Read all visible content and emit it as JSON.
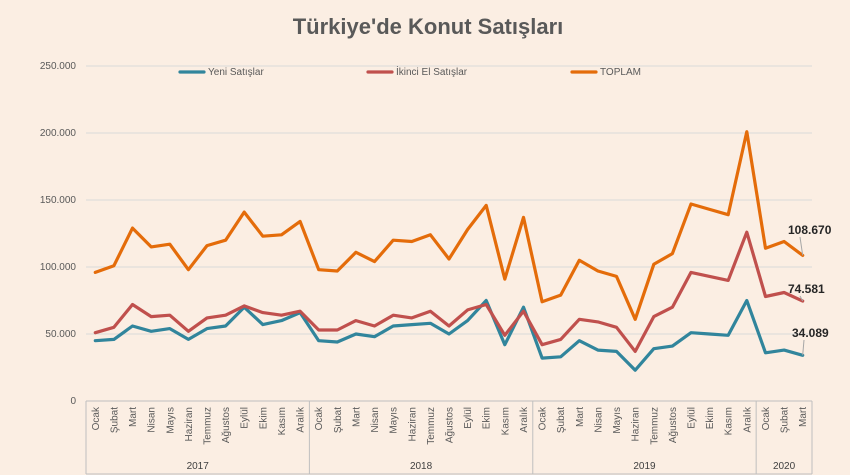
{
  "chart_data": {
    "type": "line",
    "title": "Türkiye'de Konut Satışları",
    "ylim": [
      0,
      250000
    ],
    "yticks": [
      "0",
      "50.000",
      "100.000",
      "150.000",
      "200.000",
      "250.000"
    ],
    "ytick_values": [
      0,
      50000,
      100000,
      150000,
      200000,
      250000
    ],
    "grid": "horizontal",
    "legend_position": "top",
    "categories": [
      "Ocak",
      "Şubat",
      "Mart",
      "Nisan",
      "Mayıs",
      "Haziran",
      "Temmuz",
      "Ağustos",
      "Eylül",
      "Ekim",
      "Kasım",
      "Aralık",
      "Ocak",
      "Şubat",
      "Mart",
      "Nisan",
      "Mayıs",
      "Haziran",
      "Temmuz",
      "Ağustos",
      "Eylül",
      "Ekim",
      "Kasım",
      "Aralık",
      "Ocak",
      "Şubat",
      "Mart",
      "Nisan",
      "Mayıs",
      "Haziran",
      "Temmuz",
      "Ağustos",
      "Eylül",
      "Ekim",
      "Kasım",
      "Aralık",
      "Ocak",
      "Şubat",
      "Mart"
    ],
    "year_groups": [
      {
        "label": "2017",
        "count": 12
      },
      {
        "label": "2018",
        "count": 12
      },
      {
        "label": "2019",
        "count": 12
      },
      {
        "label": "2020",
        "count": 3
      }
    ],
    "series": [
      {
        "name": "Yeni Satışlar",
        "color": "#31859c",
        "values": [
          45000,
          46000,
          56000,
          52000,
          54000,
          46000,
          54000,
          56000,
          70000,
          57000,
          60000,
          66000,
          45000,
          44000,
          50000,
          48000,
          56000,
          57000,
          58000,
          50000,
          60000,
          75000,
          42000,
          70000,
          32000,
          33000,
          45000,
          38000,
          37000,
          23000,
          39000,
          41000,
          51000,
          50000,
          49000,
          75000,
          36000,
          38000,
          34089
        ]
      },
      {
        "name": "İkinci El Satışlar",
        "color": "#c0504d",
        "values": [
          51000,
          55000,
          72000,
          63000,
          64000,
          52000,
          62000,
          64000,
          71000,
          66000,
          64000,
          67000,
          53000,
          53000,
          60000,
          56000,
          64000,
          62000,
          67000,
          56000,
          68000,
          72000,
          49000,
          67000,
          42000,
          46000,
          61000,
          59000,
          55000,
          37000,
          63000,
          70000,
          96000,
          93000,
          90000,
          126000,
          78000,
          81000,
          74581
        ]
      },
      {
        "name": "TOPLAM",
        "color": "#e46c0a",
        "values": [
          96000,
          101000,
          129000,
          115000,
          117000,
          98000,
          116000,
          120000,
          141000,
          123000,
          124000,
          134000,
          98000,
          97000,
          111000,
          104000,
          120000,
          119000,
          124000,
          106000,
          128000,
          146000,
          91000,
          137000,
          74000,
          79000,
          105000,
          97000,
          93000,
          61000,
          102000,
          110000,
          147000,
          143000,
          139000,
          201000,
          114000,
          119000,
          108670
        ]
      }
    ],
    "annotations": [
      "108.670",
      "74.581",
      "34.089"
    ]
  }
}
